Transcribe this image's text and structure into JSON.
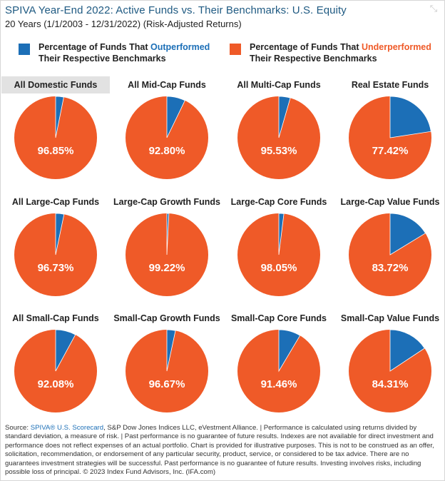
{
  "header": {
    "title": "SPIVA Year-End 2022: Active Funds vs. Their Benchmarks: U.S. Equity",
    "subtitle": "20 Years (1/1/2003 - 12/31/2022) (Risk-Adjusted Returns)",
    "expand_icon": "expand-arrows-icon"
  },
  "colors": {
    "outperformed": "#1c6fb7",
    "underperformed": "#ef5a28"
  },
  "legend": {
    "outperformed": {
      "prefix": "Percentage of Funds That ",
      "highlight": "Outperformed",
      "line2": "Their Respective Benchmarks"
    },
    "underperformed": {
      "prefix": "Percentage of Funds That ",
      "highlight": "Underperformed",
      "line2": "Their Respective Benchmarks"
    }
  },
  "chart_data": {
    "type": "pie",
    "series_labels": [
      "Outperformed",
      "Underperformed"
    ],
    "charts": [
      {
        "title": "All Domestic Funds",
        "underperformed": 96.85,
        "outperformed": 3.15,
        "label": "96.85%",
        "selected": true
      },
      {
        "title": "All Mid-Cap Funds",
        "underperformed": 92.8,
        "outperformed": 7.2,
        "label": "92.80%"
      },
      {
        "title": "All Multi-Cap Funds",
        "underperformed": 95.53,
        "outperformed": 4.47,
        "label": "95.53%"
      },
      {
        "title": "Real Estate Funds",
        "underperformed": 77.42,
        "outperformed": 22.58,
        "label": "77.42%"
      },
      {
        "title": "All Large-Cap Funds",
        "underperformed": 96.73,
        "outperformed": 3.27,
        "label": "96.73%"
      },
      {
        "title": "Large-Cap Growth Funds",
        "underperformed": 99.22,
        "outperformed": 0.78,
        "label": "99.22%"
      },
      {
        "title": "Large-Cap Core Funds",
        "underperformed": 98.05,
        "outperformed": 1.95,
        "label": "98.05%"
      },
      {
        "title": "Large-Cap Value Funds",
        "underperformed": 83.72,
        "outperformed": 16.28,
        "label": "83.72%"
      },
      {
        "title": "All Small-Cap Funds",
        "underperformed": 92.08,
        "outperformed": 7.92,
        "label": "92.08%"
      },
      {
        "title": "Small-Cap Growth Funds",
        "underperformed": 96.67,
        "outperformed": 3.33,
        "label": "96.67%"
      },
      {
        "title": "Small-Cap Core Funds",
        "underperformed": 91.46,
        "outperformed": 8.54,
        "label": "91.46%"
      },
      {
        "title": "Small-Cap Value Funds",
        "underperformed": 84.31,
        "outperformed": 15.69,
        "label": "84.31%"
      }
    ]
  },
  "footer": {
    "prefix": "Source: ",
    "link": "SPIVA® U.S. Scorecard",
    "text": ", S&P Dow Jones Indices LLC, eVestment Alliance. | Performance is calculated using returns divided by standard deviation, a measure of risk. | Past performance is no guarantee of future results. Indexes are not available for direct investment and performance does not reflect expenses of an actual portfolio. Chart is provided for illustrative purposes. This is not to be construed as an offer, solicitation, recommendation, or endorsement of any particular security, product, service, or considered to be tax advice. There are no guarantees investment strategies will be successful. Past performance is no guarantee of future results. Investing involves risks, including possible loss of principal. © 2023 Index Fund Advisors, Inc. (IFA.com)"
  }
}
